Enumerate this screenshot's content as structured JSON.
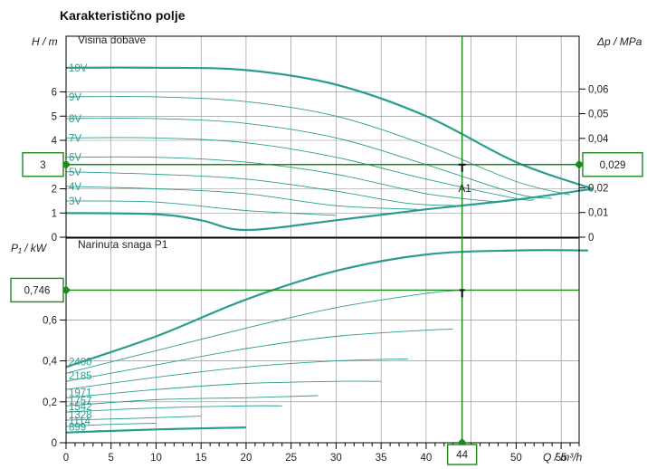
{
  "chart_data": {
    "type": "line",
    "title": "Karakteristično polje",
    "colors": {
      "curve": "#2a9d8f",
      "operating_line": "#1b8a1b",
      "frame": "#000000",
      "grid": "#888888"
    },
    "x_axis": {
      "label": "Q / m³/h",
      "ticks": [
        "0",
        "5",
        "10",
        "15",
        "20",
        "25",
        "30",
        "35",
        "40",
        "45",
        "50",
        "55"
      ],
      "range": [
        0,
        57
      ]
    },
    "grid": true,
    "head_panel": {
      "label": "Visina dobave",
      "y_label": "H / m",
      "y_ticks": [
        "0",
        "1",
        "2",
        "3",
        "4",
        "5",
        "6"
      ],
      "y_range": [
        0,
        8.3
      ],
      "y2_label": "Δp / MPa",
      "y2_ticks": [
        "0",
        "0,01",
        "0,02",
        "0,03",
        "0,04",
        "0,05",
        "0,06"
      ],
      "y2_values": [
        0,
        0.01,
        0.02,
        0.03,
        0.04,
        0.05,
        0.06
      ],
      "series": [
        {
          "name": "10V",
          "x": [
            0,
            10,
            20,
            30,
            40,
            50,
            58.5
          ],
          "y": [
            7.0,
            7.0,
            6.9,
            6.3,
            5.0,
            3.1,
            2.0
          ]
        },
        {
          "name": "9V",
          "x": [
            0,
            10,
            20,
            30,
            40,
            50,
            56
          ],
          "y": [
            5.8,
            5.8,
            5.6,
            5.0,
            3.8,
            2.3,
            1.75
          ]
        },
        {
          "name": "8V",
          "x": [
            0,
            10,
            20,
            30,
            40,
            50,
            54
          ],
          "y": [
            4.9,
            4.9,
            4.7,
            4.1,
            3.0,
            1.8,
            1.6
          ]
        },
        {
          "name": "7V",
          "x": [
            0,
            10,
            20,
            30,
            40,
            50,
            52
          ],
          "y": [
            4.1,
            4.1,
            3.9,
            3.3,
            2.4,
            1.6,
            1.55
          ]
        },
        {
          "name": "6V",
          "x": [
            0,
            10,
            20,
            30,
            40,
            48
          ],
          "y": [
            3.3,
            3.3,
            3.1,
            2.6,
            1.8,
            1.45
          ]
        },
        {
          "name": "5V",
          "x": [
            0,
            10,
            20,
            30,
            38,
            44
          ],
          "y": [
            2.7,
            2.6,
            2.4,
            1.9,
            1.4,
            1.3
          ]
        },
        {
          "name": "4V",
          "x": [
            0,
            10,
            20,
            30,
            39
          ],
          "y": [
            2.1,
            2.0,
            1.8,
            1.3,
            1.15
          ]
        },
        {
          "name": "3V",
          "x": [
            0,
            10,
            20,
            30
          ],
          "y": [
            1.5,
            1.45,
            1.1,
            0.9
          ]
        }
      ],
      "min_curve": {
        "x": [
          0,
          10,
          15,
          20,
          30,
          40,
          50,
          58.5
        ],
        "y": [
          1.0,
          0.95,
          0.7,
          0.3,
          0.7,
          1.15,
          1.55,
          2.0
        ]
      },
      "operating_point": {
        "label": "A1",
        "x": 44,
        "y": 3.0
      },
      "markers": {
        "head_left": "3",
        "dp_right": "0,029"
      }
    },
    "power_panel": {
      "label": "Narinuta snaga P1",
      "y_label": "P₁ / kW",
      "y_ticks": [
        "0",
        "0,2",
        "0,4",
        "0,6"
      ],
      "y_range": [
        0,
        1.0
      ],
      "series": [
        {
          "name": "2400",
          "x": [
            0,
            10,
            20,
            30,
            40,
            50,
            58
          ],
          "y": [
            0.37,
            0.52,
            0.7,
            0.84,
            0.92,
            0.94,
            0.94
          ]
        },
        {
          "name": "",
          "x": [
            0,
            10,
            20,
            30,
            40,
            44
          ],
          "y": [
            0.34,
            0.45,
            0.56,
            0.66,
            0.73,
            0.746
          ]
        },
        {
          "name": "2185",
          "x": [
            0,
            10,
            20,
            30,
            40,
            43
          ],
          "y": [
            0.3,
            0.38,
            0.46,
            0.52,
            0.55,
            0.555
          ]
        },
        {
          "name": "",
          "x": [
            0,
            10,
            20,
            30,
            38
          ],
          "y": [
            0.26,
            0.32,
            0.37,
            0.4,
            0.41
          ]
        },
        {
          "name": "1971",
          "x": [
            0,
            10,
            20,
            30,
            35
          ],
          "y": [
            0.22,
            0.26,
            0.29,
            0.3,
            0.3
          ]
        },
        {
          "name": "1757",
          "x": [
            0,
            10,
            20,
            28
          ],
          "y": [
            0.18,
            0.21,
            0.22,
            0.23
          ]
        },
        {
          "name": "1542",
          "x": [
            0,
            10,
            20,
            24
          ],
          "y": [
            0.15,
            0.17,
            0.18,
            0.18
          ]
        },
        {
          "name": "1328",
          "x": [
            0,
            8,
            15
          ],
          "y": [
            0.11,
            0.12,
            0.13
          ]
        },
        {
          "name": "1114",
          "x": [
            0,
            5,
            10
          ],
          "y": [
            0.08,
            0.09,
            0.095
          ]
        },
        {
          "name": "899",
          "x": [
            0,
            2,
            4
          ],
          "y": [
            0.05,
            0.055,
            0.06
          ]
        }
      ],
      "min_curve": {
        "x": [
          0,
          10,
          20
        ],
        "y": [
          0.05,
          0.065,
          0.075
        ]
      },
      "operating_point": {
        "x": 44,
        "y": 0.746
      },
      "markers": {
        "power_left": "0,746",
        "flow_bottom": "44"
      }
    }
  }
}
